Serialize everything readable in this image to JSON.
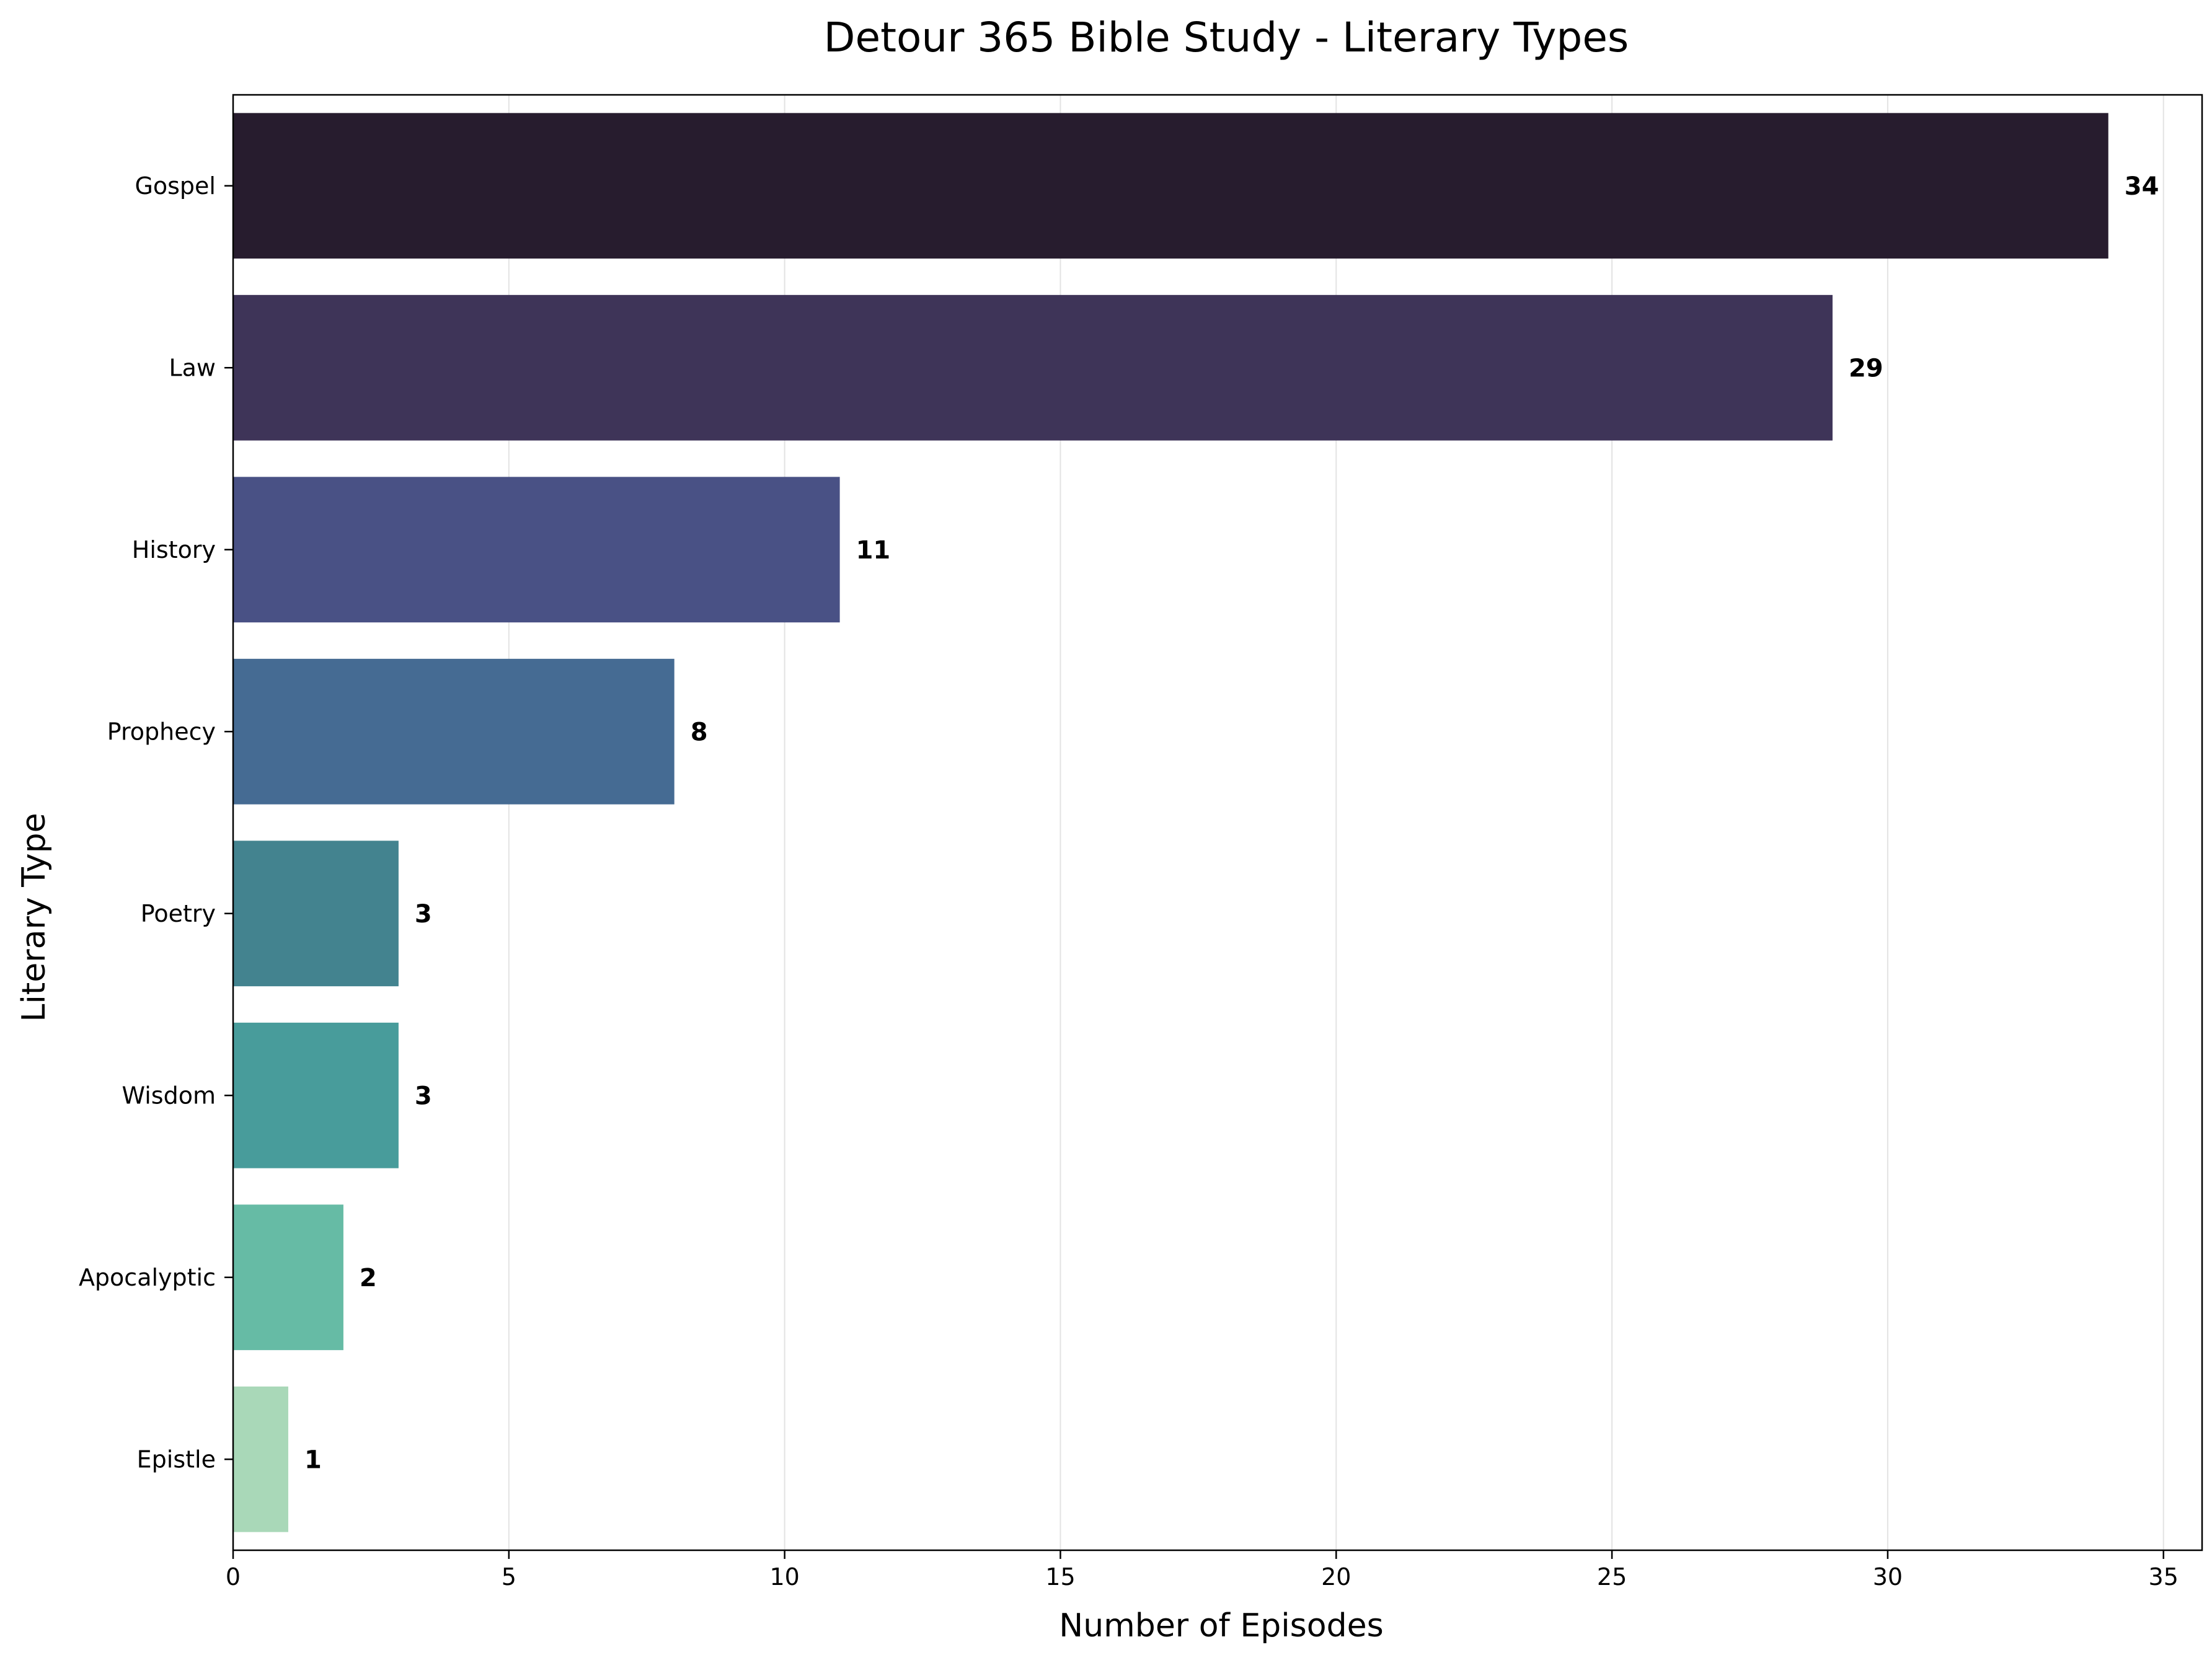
{
  "chart_data": {
    "type": "bar",
    "orientation": "horizontal",
    "title": "Detour 365 Bible Study - Literary Types",
    "xlabel": "Number of Episodes",
    "ylabel": "Literary Type",
    "xlim": [
      0,
      35.7
    ],
    "xticks": [
      0,
      5,
      10,
      15,
      20,
      25,
      30,
      35
    ],
    "grid": "x-axis",
    "categories": [
      "Gospel",
      "Law",
      "History",
      "Prophecy",
      "Poetry",
      "Wisdom",
      "Apocalyptic",
      "Epistle"
    ],
    "values": [
      34,
      29,
      11,
      8,
      3,
      3,
      2,
      1
    ],
    "colors": [
      "#271c2e",
      "#3e3458",
      "#495185",
      "#456b93",
      "#43838f",
      "#489c9b",
      "#66bba5",
      "#a9d8b8"
    ]
  }
}
